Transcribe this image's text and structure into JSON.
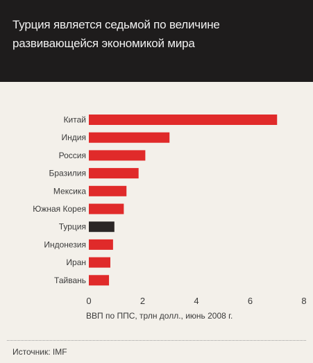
{
  "title": "Турция является седьмой по величине развивающейся экономикой мира",
  "chart_data": {
    "type": "bar",
    "orientation": "horizontal",
    "categories": [
      "Китай",
      "Индия",
      "Россия",
      "Бразилия",
      "Мексика",
      "Южная Корея",
      "Турция",
      "Индонезия",
      "Иран",
      "Тайвань"
    ],
    "values": [
      7.0,
      3.0,
      2.1,
      1.85,
      1.4,
      1.3,
      0.95,
      0.9,
      0.8,
      0.75
    ],
    "highlight_category": "Турция",
    "xlabel": "ВВП по ППС, трлн долл., июнь 2008 г.",
    "ticks": [
      0,
      2,
      4,
      6,
      8
    ],
    "xlim": [
      0,
      8
    ],
    "colors": {
      "bar": "#e02a2a",
      "highlight": "#2a2626"
    }
  },
  "source": "Источник: IMF"
}
